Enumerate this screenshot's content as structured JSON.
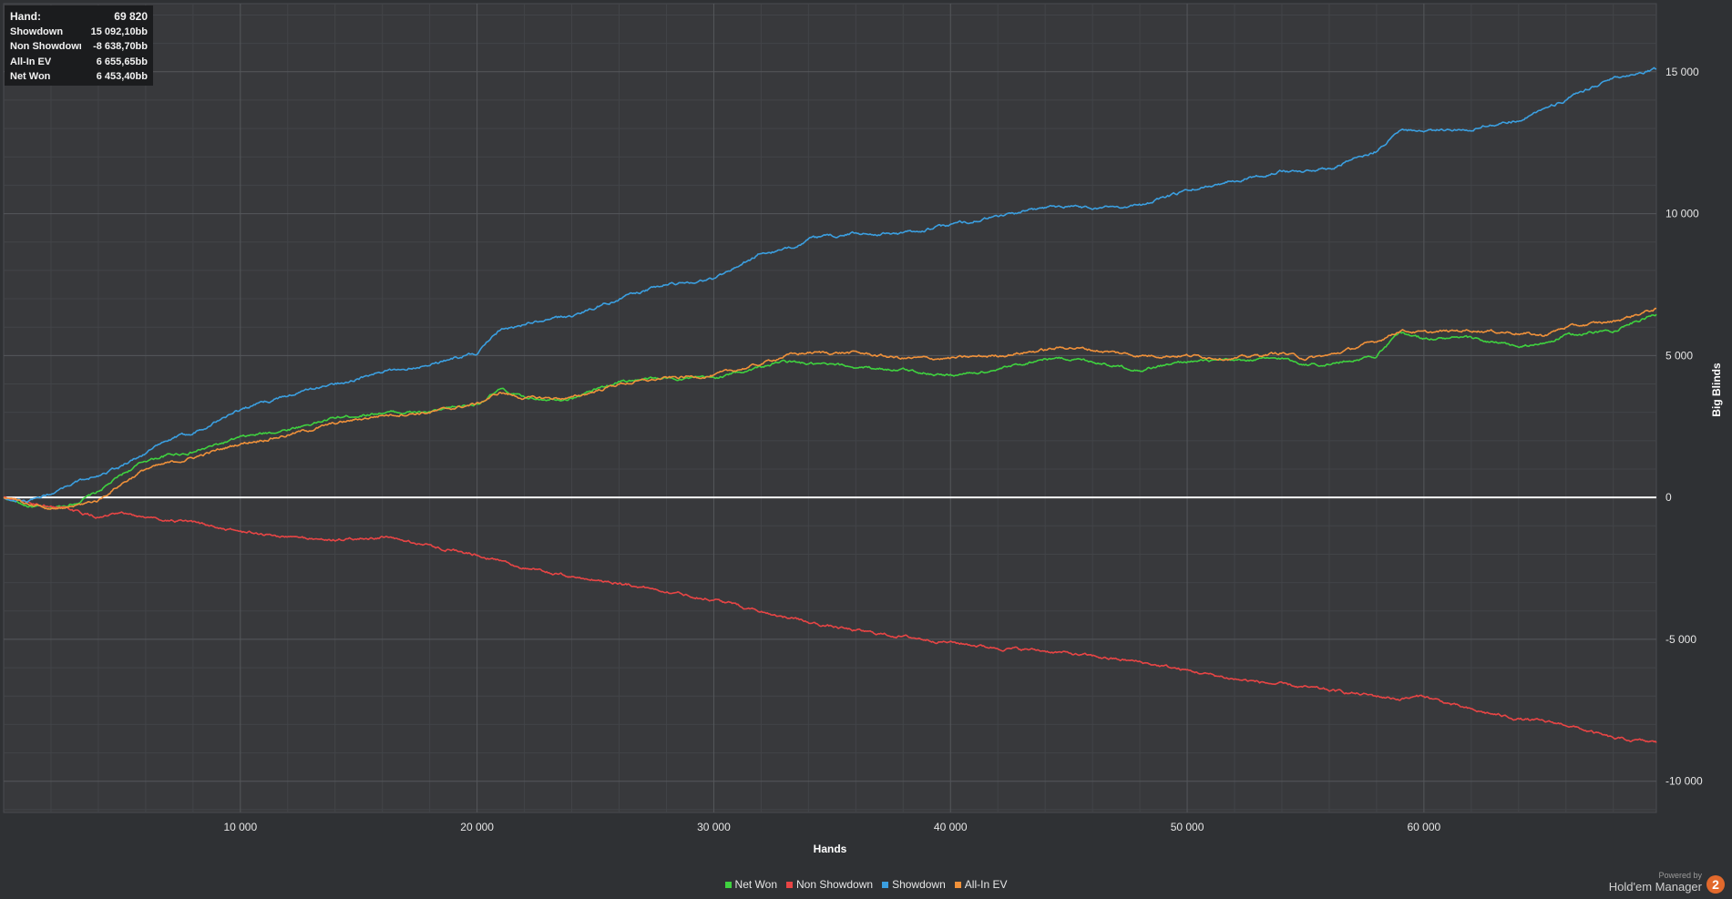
{
  "stats": {
    "rows": [
      {
        "label": "Hand:",
        "value": "69 820"
      },
      {
        "label": "Showdown",
        "value": "15 092,10bb"
      },
      {
        "label": "Non Showdown",
        "value": "-8 638,70bb"
      },
      {
        "label": "All-In EV",
        "value": "6 655,65bb"
      },
      {
        "label": "Net Won",
        "value": "6 453,40bb"
      }
    ]
  },
  "branding": {
    "powered_by": "Powered by",
    "product": "Hold'em Manager",
    "logo_text": "2"
  },
  "chart_data": {
    "type": "line",
    "xlabel": "Hands",
    "ylabel": "Big Blinds",
    "xlim": [
      0,
      69820
    ],
    "ylim": [
      -11100,
      17400
    ],
    "x_ticks": [
      10000,
      20000,
      30000,
      40000,
      50000,
      60000
    ],
    "x_tick_labels": [
      "10 000",
      "20 000",
      "30 000",
      "40 000",
      "50 000",
      "60 000"
    ],
    "y_ticks": [
      15000,
      10000,
      5000,
      0,
      -5000,
      -10000
    ],
    "y_tick_labels": [
      "15 000",
      "10 000",
      "5 000",
      "0",
      "-5 000",
      "-10 000"
    ],
    "legend_position": "bottom-center",
    "grid": true,
    "x": [
      0,
      1000,
      2000,
      3000,
      4000,
      5000,
      6000,
      7000,
      8000,
      10000,
      12000,
      14000,
      16000,
      18000,
      20000,
      21000,
      22000,
      24000,
      26000,
      28000,
      30000,
      32000,
      33000,
      34000,
      36000,
      38000,
      40000,
      42000,
      44000,
      45000,
      46000,
      48000,
      50000,
      52000,
      54000,
      55000,
      56000,
      58000,
      59000,
      60000,
      62000,
      64000,
      65000,
      66000,
      68000,
      69820
    ],
    "series": [
      {
        "name": "Net Won",
        "color": "#3fd23f",
        "values": [
          0,
          -300,
          -400,
          -200,
          200,
          800,
          1300,
          1500,
          1600,
          2100,
          2400,
          2800,
          3000,
          3000,
          3300,
          3800,
          3500,
          3500,
          4100,
          4200,
          4200,
          4600,
          4800,
          4700,
          4600,
          4500,
          4300,
          4500,
          4900,
          4900,
          4800,
          4500,
          4800,
          4800,
          4900,
          4700,
          4700,
          5000,
          5800,
          5600,
          5600,
          5300,
          5400,
          5700,
          5900,
          6453
        ]
      },
      {
        "name": "Non Showdown",
        "color": "#e84545",
        "values": [
          0,
          -200,
          -300,
          -500,
          -700,
          -600,
          -700,
          -800,
          -900,
          -1200,
          -1400,
          -1500,
          -1400,
          -1700,
          -2000,
          -2200,
          -2500,
          -2800,
          -3000,
          -3300,
          -3600,
          -4000,
          -4200,
          -4400,
          -4700,
          -4900,
          -5100,
          -5300,
          -5400,
          -5500,
          -5600,
          -5800,
          -6100,
          -6400,
          -6600,
          -6700,
          -6800,
          -7000,
          -7100,
          -7000,
          -7500,
          -7800,
          -7900,
          -8000,
          -8500,
          -8639
        ]
      },
      {
        "name": "Showdown",
        "color": "#3b9fe0",
        "values": [
          0,
          -100,
          100,
          500,
          800,
          1100,
          1600,
          2000,
          2300,
          3100,
          3600,
          4000,
          4400,
          4700,
          5100,
          5900,
          6100,
          6400,
          7000,
          7500,
          7700,
          8600,
          8700,
          9100,
          9300,
          9300,
          9600,
          9900,
          10200,
          10300,
          10200,
          10300,
          10800,
          11200,
          11500,
          11500,
          11600,
          12200,
          13000,
          12900,
          13000,
          13300,
          13700,
          14000,
          14800,
          15092
        ]
      },
      {
        "name": "All-In EV",
        "color": "#f0913a",
        "values": [
          0,
          -200,
          -400,
          -300,
          -100,
          500,
          1000,
          1200,
          1400,
          1900,
          2200,
          2600,
          2900,
          3000,
          3300,
          3700,
          3500,
          3500,
          4000,
          4200,
          4300,
          4700,
          5000,
          5100,
          5100,
          4900,
          4900,
          5000,
          5200,
          5300,
          5200,
          5000,
          5000,
          4900,
          5100,
          4900,
          5000,
          5500,
          5900,
          5800,
          5900,
          5800,
          5700,
          6000,
          6200,
          6656
        ]
      }
    ]
  }
}
